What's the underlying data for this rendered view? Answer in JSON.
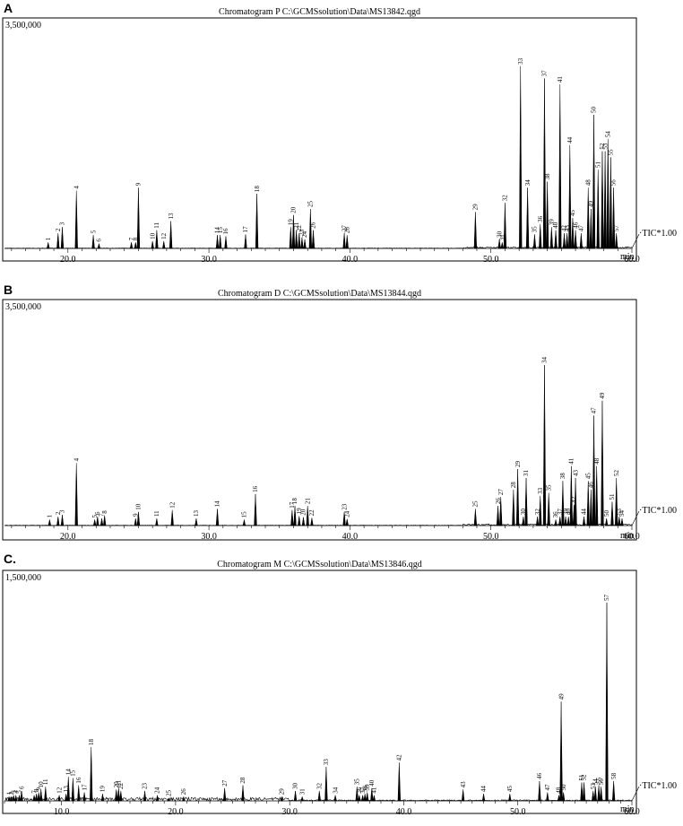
{
  "chart_data": [
    {
      "type": "line",
      "panel_label": "A",
      "title": "Chromatogram P C:\\GCMSsolution\\Data\\MS13842.qgd",
      "y_max_label": "3,500,000",
      "xlabel": "min",
      "series_label": "TIC*1.00",
      "xlim": [
        15.5,
        60.0
      ],
      "ylim": [
        0,
        3500000
      ],
      "xticks": [
        20.0,
        30.0,
        40.0,
        50.0,
        60.0
      ],
      "xtick_labels": [
        "20.0",
        "30.0",
        "40.0",
        "50.0",
        "60.0"
      ],
      "peaks": [
        {
          "label": "1",
          "rt": 18.6,
          "h": 100000
        },
        {
          "label": "2",
          "rt": 19.3,
          "h": 250000
        },
        {
          "label": "3",
          "rt": 19.6,
          "h": 350000
        },
        {
          "label": "4",
          "rt": 20.6,
          "h": 950000
        },
        {
          "label": "5",
          "rt": 21.8,
          "h": 220000
        },
        {
          "label": "6",
          "rt": 22.2,
          "h": 80000
        },
        {
          "label": "7",
          "rt": 24.5,
          "h": 100000
        },
        {
          "label": "8",
          "rt": 24.8,
          "h": 100000
        },
        {
          "label": "9",
          "rt": 25.0,
          "h": 1000000
        },
        {
          "label": "10",
          "rt": 26.0,
          "h": 120000
        },
        {
          "label": "11",
          "rt": 26.3,
          "h": 300000
        },
        {
          "label": "12",
          "rt": 26.8,
          "h": 120000
        },
        {
          "label": "13",
          "rt": 27.3,
          "h": 450000
        },
        {
          "label": "14",
          "rt": 30.6,
          "h": 220000
        },
        {
          "label": "15",
          "rt": 30.8,
          "h": 220000
        },
        {
          "label": "16",
          "rt": 31.2,
          "h": 200000
        },
        {
          "label": "17",
          "rt": 32.6,
          "h": 230000
        },
        {
          "label": "18",
          "rt": 33.4,
          "h": 900000
        },
        {
          "label": "19",
          "rt": 35.8,
          "h": 350000
        },
        {
          "label": "20",
          "rt": 36.0,
          "h": 550000
        },
        {
          "label": "21",
          "rt": 36.2,
          "h": 300000
        },
        {
          "label": "22",
          "rt": 36.4,
          "h": 250000
        },
        {
          "label": "23",
          "rt": 36.6,
          "h": 180000
        },
        {
          "label": "24",
          "rt": 36.8,
          "h": 150000
        },
        {
          "label": "25",
          "rt": 37.2,
          "h": 650000
        },
        {
          "label": "26",
          "rt": 37.4,
          "h": 300000
        },
        {
          "label": "27",
          "rt": 39.6,
          "h": 250000
        },
        {
          "label": "28",
          "rt": 39.8,
          "h": 220000
        },
        {
          "label": "29",
          "rt": 48.9,
          "h": 600000
        },
        {
          "label": "30",
          "rt": 50.6,
          "h": 150000
        },
        {
          "label": "31",
          "rt": 50.8,
          "h": 100000
        },
        {
          "label": "32",
          "rt": 51.0,
          "h": 750000
        },
        {
          "label": "33",
          "rt": 52.1,
          "h": 3000000
        },
        {
          "label": "34",
          "rt": 52.6,
          "h": 1000000
        },
        {
          "label": "35",
          "rt": 53.1,
          "h": 230000
        },
        {
          "label": "36",
          "rt": 53.5,
          "h": 400000
        },
        {
          "label": "37",
          "rt": 53.8,
          "h": 2800000
        },
        {
          "label": "38",
          "rt": 54.0,
          "h": 1100000
        },
        {
          "label": "39",
          "rt": 54.3,
          "h": 350000
        },
        {
          "label": "40",
          "rt": 54.6,
          "h": 300000
        },
        {
          "label": "41",
          "rt": 54.9,
          "h": 2700000
        },
        {
          "label": "42",
          "rt": 55.2,
          "h": 250000
        },
        {
          "label": "43",
          "rt": 55.4,
          "h": 250000
        },
        {
          "label": "44",
          "rt": 55.6,
          "h": 1700000
        },
        {
          "label": "45",
          "rt": 55.8,
          "h": 500000
        },
        {
          "label": "46",
          "rt": 56.0,
          "h": 300000
        },
        {
          "label": "47",
          "rt": 56.4,
          "h": 250000
        },
        {
          "label": "48",
          "rt": 56.9,
          "h": 1000000
        },
        {
          "label": "49",
          "rt": 57.1,
          "h": 650000
        },
        {
          "label": "50",
          "rt": 57.3,
          "h": 2200000
        },
        {
          "label": "51",
          "rt": 57.6,
          "h": 1300000
        },
        {
          "label": "52",
          "rt": 57.9,
          "h": 1600000
        },
        {
          "label": "53",
          "rt": 58.1,
          "h": 1600000
        },
        {
          "label": "54",
          "rt": 58.3,
          "h": 1800000
        },
        {
          "label": "55",
          "rt": 58.5,
          "h": 1500000
        },
        {
          "label": "56",
          "rt": 58.7,
          "h": 1000000
        },
        {
          "label": "57",
          "rt": 58.9,
          "h": 250000
        }
      ]
    },
    {
      "type": "line",
      "panel_label": "B",
      "title": "Chromatogram D C:\\GCMSsolution\\Data\\MS13844.qgd",
      "y_max_label": "3,500,000",
      "xlabel": "min",
      "series_label": "TIC*1.00",
      "xlim": [
        15.5,
        60.0
      ],
      "ylim": [
        0,
        3500000
      ],
      "xticks": [
        20.0,
        30.0,
        40.0,
        50.0,
        60.0
      ],
      "xtick_labels": [
        "20.0",
        "30.0",
        "40.0",
        "50.0",
        "60.0"
      ],
      "peaks": [
        {
          "label": "1",
          "rt": 18.7,
          "h": 100000
        },
        {
          "label": "2",
          "rt": 19.3,
          "h": 150000
        },
        {
          "label": "3",
          "rt": 19.6,
          "h": 180000
        },
        {
          "label": "4",
          "rt": 20.6,
          "h": 1050000
        },
        {
          "label": "5",
          "rt": 21.9,
          "h": 100000
        },
        {
          "label": "6",
          "rt": 22.1,
          "h": 150000
        },
        {
          "label": "7",
          "rt": 22.4,
          "h": 120000
        },
        {
          "label": "8",
          "rt": 22.6,
          "h": 170000
        },
        {
          "label": "9",
          "rt": 24.8,
          "h": 120000
        },
        {
          "label": "10",
          "rt": 25.0,
          "h": 230000
        },
        {
          "label": "11",
          "rt": 26.3,
          "h": 120000
        },
        {
          "label": "12",
          "rt": 27.4,
          "h": 260000
        },
        {
          "label": "13",
          "rt": 29.1,
          "h": 120000
        },
        {
          "label": "14",
          "rt": 30.6,
          "h": 280000
        },
        {
          "label": "15",
          "rt": 32.5,
          "h": 100000
        },
        {
          "label": "16",
          "rt": 33.3,
          "h": 530000
        },
        {
          "label": "17",
          "rt": 35.9,
          "h": 260000
        },
        {
          "label": "18",
          "rt": 36.1,
          "h": 330000
        },
        {
          "label": "19",
          "rt": 36.4,
          "h": 160000
        },
        {
          "label": "20",
          "rt": 36.7,
          "h": 140000
        },
        {
          "label": "21",
          "rt": 37.0,
          "h": 330000
        },
        {
          "label": "22",
          "rt": 37.3,
          "h": 130000
        },
        {
          "label": "23",
          "rt": 39.6,
          "h": 230000
        },
        {
          "label": "24",
          "rt": 39.8,
          "h": 110000
        },
        {
          "label": "25",
          "rt": 48.9,
          "h": 280000
        },
        {
          "label": "26",
          "rt": 50.5,
          "h": 330000
        },
        {
          "label": "27",
          "rt": 50.7,
          "h": 480000
        },
        {
          "label": "28",
          "rt": 51.6,
          "h": 600000
        },
        {
          "label": "29",
          "rt": 51.9,
          "h": 950000
        },
        {
          "label": "30",
          "rt": 52.3,
          "h": 150000
        },
        {
          "label": "31",
          "rt": 52.5,
          "h": 800000
        },
        {
          "label": "32",
          "rt": 53.3,
          "h": 150000
        },
        {
          "label": "33",
          "rt": 53.5,
          "h": 500000
        },
        {
          "label": "34",
          "rt": 53.8,
          "h": 2700000
        },
        {
          "label": "35",
          "rt": 54.1,
          "h": 550000
        },
        {
          "label": "36",
          "rt": 54.6,
          "h": 100000
        },
        {
          "label": "37",
          "rt": 54.9,
          "h": 150000
        },
        {
          "label": "38",
          "rt": 55.1,
          "h": 750000
        },
        {
          "label": "39",
          "rt": 55.3,
          "h": 150000
        },
        {
          "label": "40",
          "rt": 55.5,
          "h": 150000
        },
        {
          "label": "41",
          "rt": 55.7,
          "h": 1000000
        },
        {
          "label": "42",
          "rt": 55.9,
          "h": 350000
        },
        {
          "label": "43",
          "rt": 56.0,
          "h": 800000
        },
        {
          "label": "44",
          "rt": 56.6,
          "h": 150000
        },
        {
          "label": "45",
          "rt": 56.9,
          "h": 750000
        },
        {
          "label": "46",
          "rt": 57.1,
          "h": 600000
        },
        {
          "label": "47",
          "rt": 57.3,
          "h": 1850000
        },
        {
          "label": "48",
          "rt": 57.5,
          "h": 1000000
        },
        {
          "label": "49",
          "rt": 57.9,
          "h": 2100000
        },
        {
          "label": "50",
          "rt": 58.2,
          "h": 120000
        },
        {
          "label": "51",
          "rt": 58.6,
          "h": 400000
        },
        {
          "label": "52",
          "rt": 58.9,
          "h": 800000
        },
        {
          "label": "53",
          "rt": 59.1,
          "h": 150000
        },
        {
          "label": "54",
          "rt": 59.3,
          "h": 120000
        }
      ]
    },
    {
      "type": "line",
      "panel_label": "C.",
      "title": "Chromatogram M C:\\GCMSsolution\\Data\\MS13846.qgd",
      "y_max_label": "1,500,000",
      "xlabel": "min",
      "series_label": "TIC*1.00",
      "xlim": [
        5.0,
        60.0
      ],
      "ylim": [
        0,
        1500000
      ],
      "xticks": [
        10.0,
        20.0,
        30.0,
        40.0,
        50.0,
        60.0
      ],
      "xtick_labels": [
        "10.0",
        "20.0",
        "30.0",
        "40.0",
        "50.0",
        "60.0"
      ],
      "peaks": [
        {
          "label": "1",
          "rt": 5.4,
          "h": 30000
        },
        {
          "label": "2",
          "rt": 5.6,
          "h": 30000
        },
        {
          "label": "3",
          "rt": 5.8,
          "h": 40000
        },
        {
          "label": "4",
          "rt": 6.0,
          "h": 40000
        },
        {
          "label": "5",
          "rt": 6.3,
          "h": 40000
        },
        {
          "label": "6",
          "rt": 6.5,
          "h": 70000
        },
        {
          "label": "7",
          "rt": 7.6,
          "h": 40000
        },
        {
          "label": "8",
          "rt": 7.8,
          "h": 50000
        },
        {
          "label": "9",
          "rt": 8.0,
          "h": 60000
        },
        {
          "label": "10",
          "rt": 8.2,
          "h": 80000
        },
        {
          "label": "11",
          "rt": 8.6,
          "h": 100000
        },
        {
          "label": "12",
          "rt": 9.8,
          "h": 40000
        },
        {
          "label": "13",
          "rt": 10.4,
          "h": 50000
        },
        {
          "label": "14",
          "rt": 10.6,
          "h": 170000
        },
        {
          "label": "15",
          "rt": 11.0,
          "h": 160000
        },
        {
          "label": "16",
          "rt": 11.5,
          "h": 110000
        },
        {
          "label": "17",
          "rt": 12.0,
          "h": 60000
        },
        {
          "label": "18",
          "rt": 12.6,
          "h": 380000
        },
        {
          "label": "19",
          "rt": 13.6,
          "h": 50000
        },
        {
          "label": "20",
          "rt": 14.8,
          "h": 80000
        },
        {
          "label": "21",
          "rt": 15.0,
          "h": 90000
        },
        {
          "label": "22",
          "rt": 15.2,
          "h": 70000
        },
        {
          "label": "23",
          "rt": 17.3,
          "h": 70000
        },
        {
          "label": "24",
          "rt": 18.4,
          "h": 40000
        },
        {
          "label": "25",
          "rt": 19.4,
          "h": 20000
        },
        {
          "label": "26",
          "rt": 20.7,
          "h": 30000
        },
        {
          "label": "27",
          "rt": 24.3,
          "h": 90000
        },
        {
          "label": "28",
          "rt": 25.9,
          "h": 110000
        },
        {
          "label": "29",
          "rt": 29.3,
          "h": 30000
        },
        {
          "label": "30",
          "rt": 30.5,
          "h": 70000
        },
        {
          "label": "31",
          "rt": 31.1,
          "h": 30000
        },
        {
          "label": "32",
          "rt": 32.6,
          "h": 70000
        },
        {
          "label": "33",
          "rt": 33.2,
          "h": 240000
        },
        {
          "label": "34",
          "rt": 34.0,
          "h": 40000
        },
        {
          "label": "35",
          "rt": 35.9,
          "h": 100000
        },
        {
          "label": "36",
          "rt": 36.1,
          "h": 40000
        },
        {
          "label": "37",
          "rt": 36.4,
          "h": 40000
        },
        {
          "label": "38",
          "rt": 36.6,
          "h": 50000
        },
        {
          "label": "39",
          "rt": 36.8,
          "h": 60000
        },
        {
          "label": "40",
          "rt": 37.2,
          "h": 90000
        },
        {
          "label": "41",
          "rt": 37.4,
          "h": 40000
        },
        {
          "label": "42",
          "rt": 39.6,
          "h": 270000
        },
        {
          "label": "43",
          "rt": 45.2,
          "h": 80000
        },
        {
          "label": "44",
          "rt": 47.0,
          "h": 50000
        },
        {
          "label": "45",
          "rt": 49.3,
          "h": 50000
        },
        {
          "label": "46",
          "rt": 51.9,
          "h": 140000
        },
        {
          "label": "47",
          "rt": 52.6,
          "h": 60000
        },
        {
          "label": "48",
          "rt": 53.6,
          "h": 40000
        },
        {
          "label": "49",
          "rt": 53.8,
          "h": 700000
        },
        {
          "label": "50",
          "rt": 54.0,
          "h": 60000
        },
        {
          "label": "51",
          "rt": 55.6,
          "h": 130000
        },
        {
          "label": "52",
          "rt": 55.8,
          "h": 130000
        },
        {
          "label": "53",
          "rt": 56.6,
          "h": 70000
        },
        {
          "label": "54",
          "rt": 56.8,
          "h": 100000
        },
        {
          "label": "55",
          "rt": 57.1,
          "h": 110000
        },
        {
          "label": "56",
          "rt": 57.3,
          "h": 100000
        },
        {
          "label": "57",
          "rt": 57.8,
          "h": 1400000
        },
        {
          "label": "58",
          "rt": 58.4,
          "h": 140000
        }
      ]
    }
  ]
}
